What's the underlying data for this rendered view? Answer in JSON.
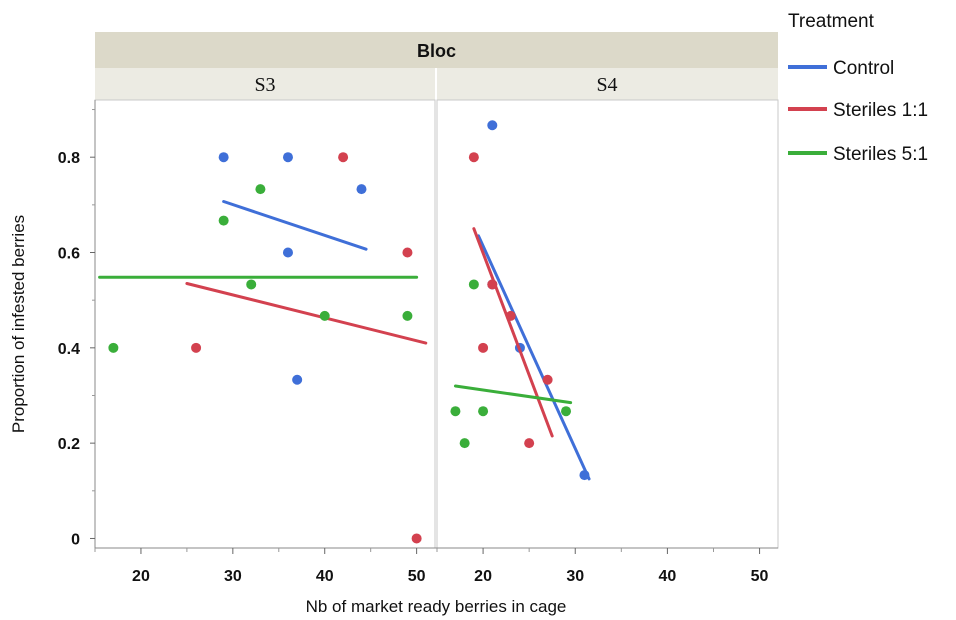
{
  "chart_data": {
    "type": "scatter",
    "facet_title": "Bloc",
    "xlabel": "Nb of market ready berries in cage",
    "ylabel": "Proportion of infested berries",
    "xlim": [
      15,
      52
    ],
    "ylim": [
      -0.02,
      0.92
    ],
    "x_ticks": [
      20,
      30,
      40,
      50
    ],
    "y_ticks": [
      0,
      0.2,
      0.4,
      0.6,
      0.8
    ],
    "y_tick_labels": [
      "0",
      "0.2",
      "0.4",
      "0.6",
      "0.8"
    ],
    "legend": {
      "title": "Treatment",
      "placement": "right",
      "entries": [
        {
          "name": "Control",
          "color": "#3f6fd8"
        },
        {
          "name": "Steriles 1:1",
          "color": "#d3414f"
        },
        {
          "name": "Steriles 5:1",
          "color": "#3aae3a"
        }
      ]
    },
    "panels": [
      {
        "label": "S3",
        "series": [
          {
            "name": "Control",
            "color": "#3f6fd8",
            "points": [
              [
                29,
                0.8
              ],
              [
                36,
                0.8
              ],
              [
                44,
                0.733
              ],
              [
                36,
                0.6
              ],
              [
                37,
                0.333
              ]
            ],
            "fit": [
              [
                29,
                0.707
              ],
              [
                44.5,
                0.607
              ]
            ]
          },
          {
            "name": "Steriles 1:1",
            "color": "#d3414f",
            "points": [
              [
                42,
                0.8
              ],
              [
                49,
                0.6
              ],
              [
                26,
                0.4
              ],
              [
                50,
                0.0
              ]
            ],
            "fit": [
              [
                25,
                0.535
              ],
              [
                51,
                0.41
              ]
            ]
          },
          {
            "name": "Steriles 5:1",
            "color": "#3aae3a",
            "points": [
              [
                33,
                0.733
              ],
              [
                29,
                0.667
              ],
              [
                32,
                0.533
              ],
              [
                40,
                0.467
              ],
              [
                49,
                0.467
              ],
              [
                17,
                0.4
              ]
            ],
            "fit": [
              [
                15.5,
                0.548
              ],
              [
                50,
                0.548
              ]
            ]
          }
        ]
      },
      {
        "label": "S4",
        "series": [
          {
            "name": "Control",
            "color": "#3f6fd8",
            "points": [
              [
                21,
                0.867
              ],
              [
                21,
                0.533
              ],
              [
                24,
                0.4
              ],
              [
                31,
                0.133
              ]
            ],
            "fit": [
              [
                19.5,
                0.635
              ],
              [
                31.5,
                0.125
              ]
            ]
          },
          {
            "name": "Steriles 1:1",
            "color": "#d3414f",
            "points": [
              [
                19,
                0.8
              ],
              [
                21,
                0.533
              ],
              [
                23,
                0.467
              ],
              [
                20,
                0.4
              ],
              [
                27,
                0.333
              ],
              [
                25,
                0.2
              ]
            ],
            "fit": [
              [
                19,
                0.65
              ],
              [
                27.5,
                0.215
              ]
            ]
          },
          {
            "name": "Steriles 5:1",
            "color": "#3aae3a",
            "points": [
              [
                19,
                0.533
              ],
              [
                17,
                0.267
              ],
              [
                20,
                0.267
              ],
              [
                29,
                0.267
              ],
              [
                18,
                0.2
              ]
            ],
            "fit": [
              [
                17,
                0.32
              ],
              [
                29.5,
                0.285
              ]
            ]
          }
        ]
      }
    ]
  }
}
